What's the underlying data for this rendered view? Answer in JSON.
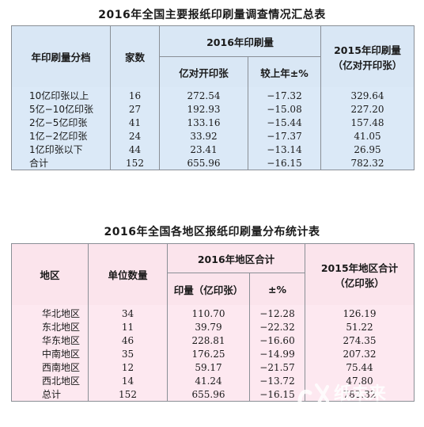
{
  "table1": {
    "title": "2016年全国主要报纸印刷量调查情况汇总表",
    "headers": {
      "col1": "年印刷量分档",
      "col2": "家数",
      "group2016": "2016年印刷量",
      "sub_a": "亿对开印张",
      "sub_b": "较上年±%",
      "col2015_line1": "2015年印刷量",
      "col2015_line2": "（亿对开印张）"
    },
    "rows": [
      {
        "label": "10亿印张以上",
        "count": "16",
        "v2016": "272.54",
        "pct": "−17.32",
        "v2015": "329.64"
      },
      {
        "label": "5亿−10亿印张",
        "count": "27",
        "v2016": "192.93",
        "pct": "−15.08",
        "v2015": "227.20"
      },
      {
        "label": "2亿−5亿印张",
        "count": "41",
        "v2016": "133.16",
        "pct": "−15.44",
        "v2015": "157.48"
      },
      {
        "label": "1亿−2亿印张",
        "count": "24",
        "v2016": "33.92",
        "pct": "−17.37",
        "v2015": "41.05"
      },
      {
        "label": "1亿印张以下",
        "count": "44",
        "v2016": "23.41",
        "pct": "−13.14",
        "v2015": "26.95"
      },
      {
        "label": "合计",
        "count": "152",
        "v2016": "655.96",
        "pct": "−16.15",
        "v2015": "782.32"
      }
    ]
  },
  "table2": {
    "title": "2016年全国各地区报纸印刷量分布统计表",
    "headers": {
      "col1": "地区",
      "col2": "单位数量",
      "group2016": "2016年地区合计",
      "sub_a": "印量（亿印张）",
      "sub_b": "±%",
      "col2015_line1": "2015年地区合计",
      "col2015_line2": "（亿印张）"
    },
    "rows": [
      {
        "label": "华北地区",
        "count": "34",
        "v2016": "110.70",
        "pct": "−12.28",
        "v2015": "126.19"
      },
      {
        "label": "东北地区",
        "count": "11",
        "v2016": "39.79",
        "pct": "−22.32",
        "v2015": "51.22"
      },
      {
        "label": "华东地区",
        "count": "46",
        "v2016": "228.81",
        "pct": "−16.60",
        "v2015": "274.35"
      },
      {
        "label": "中南地区",
        "count": "35",
        "v2016": "176.25",
        "pct": "−14.99",
        "v2015": "207.32"
      },
      {
        "label": "西南地区",
        "count": "12",
        "v2016": "59.17",
        "pct": "−21.57",
        "v2015": "75.44"
      },
      {
        "label": "西北地区",
        "count": "14",
        "v2016": "41.24",
        "pct": "−13.72",
        "v2015": "47.80"
      },
      {
        "label": "总计",
        "count": "152",
        "v2016": "655.96",
        "pct": "−16.15",
        "v2015": "782.32"
      }
    ]
  },
  "watermark": {
    "text": "纸未来",
    "url": "www.51zwl.com",
    "color": "#ffffff"
  }
}
